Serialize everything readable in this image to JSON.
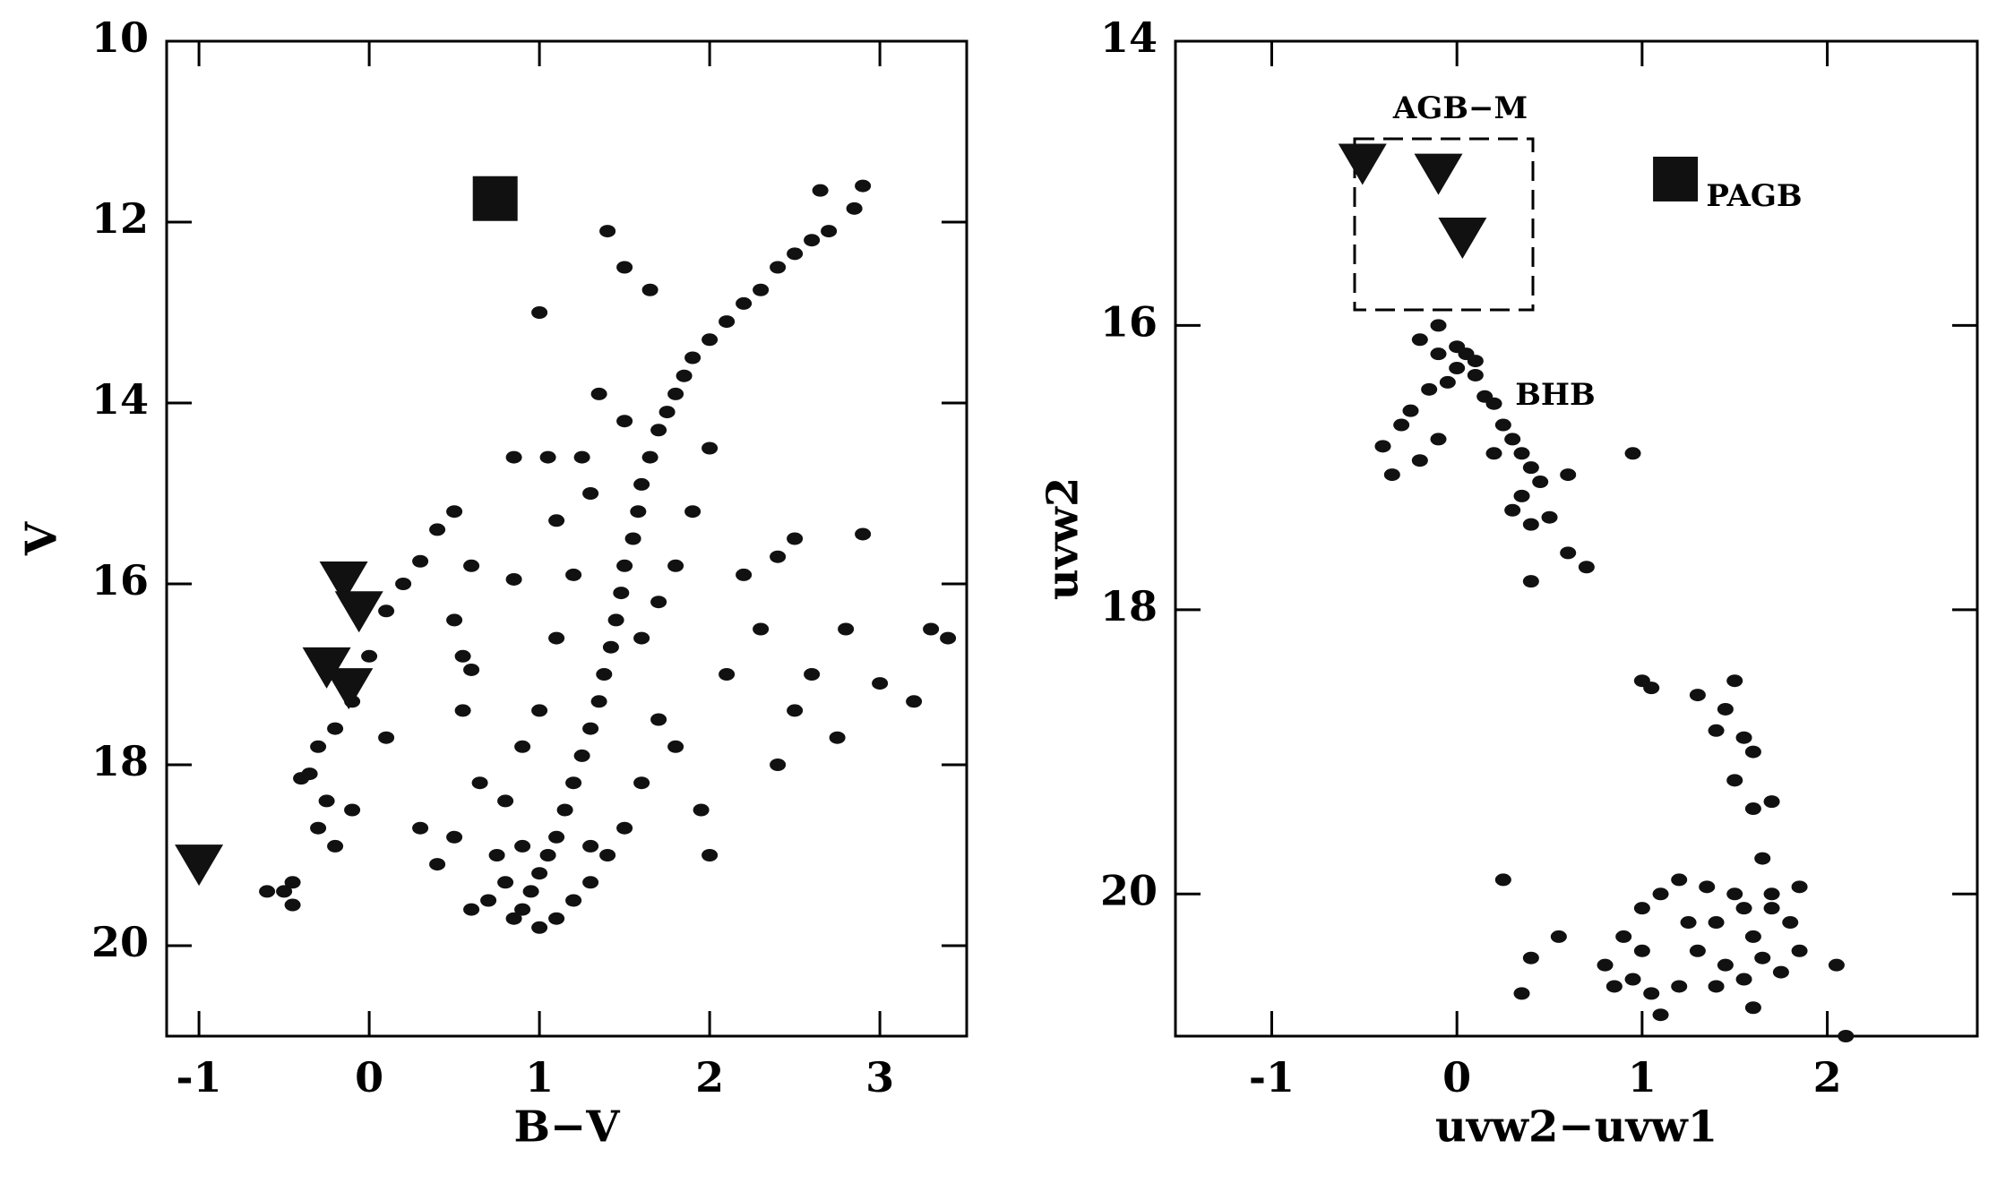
{
  "chart_data": [
    {
      "type": "scatter",
      "xlabel": "B−V",
      "ylabel": "V",
      "xlim": [
        -1.19,
        3.51
      ],
      "ylim": [
        10,
        21
      ],
      "y_inverted": true,
      "xticks": [
        -1,
        0,
        1,
        2,
        3
      ],
      "yticks": [
        10,
        12,
        14,
        16,
        18,
        20
      ],
      "series": [
        {
          "marker": "circle",
          "color": "#111111",
          "x": [
            2.9,
            2.85,
            2.65,
            2.7,
            2.6,
            2.5,
            2.4,
            2.3,
            2.2,
            2.1,
            2.0,
            1.9,
            1.85,
            1.8,
            1.75,
            1.7,
            1.65,
            1.6,
            1.58,
            1.55,
            1.5,
            1.48,
            1.45,
            1.42,
            1.38,
            1.35,
            1.3,
            1.25,
            1.2,
            1.15,
            1.1,
            1.05,
            1.0,
            0.95,
            0.9,
            0.85,
            1.2,
            1.3,
            1.4,
            1.5,
            0.8,
            0.7,
            0.6,
            1.1,
            1.0,
            0.75,
            0.9,
            1.3,
            1.6,
            1.7,
            1.8,
            1.6,
            1.7,
            1.8,
            1.9,
            2.0,
            1.5,
            1.35,
            1.3,
            1.2,
            1.1,
            1.0,
            0.9,
            0.8,
            0.5,
            0.3,
            0.4,
            0.65,
            0.55,
            1.95,
            2.0,
            2.1,
            2.3,
            2.2,
            2.4,
            2.5,
            2.8,
            2.9,
            3.0,
            3.2,
            3.3,
            3.4,
            2.5,
            2.6,
            2.75,
            2.4,
            1.4,
            1.5,
            1.65,
            1.0,
            1.25,
            0.85,
            1.05,
            1.1,
            0.6,
            0.85,
            0.5,
            0.4,
            0.3,
            0.2,
            0.1,
            0.0,
            -0.1,
            -0.2,
            -0.3,
            -0.35,
            -0.25,
            -0.3,
            -0.2,
            -0.1,
            0.1,
            -0.4,
            -0.45,
            -0.5,
            -0.6,
            -0.45,
            0.5,
            0.55,
            0.6
          ],
          "values": [
            11.6,
            11.85,
            11.65,
            12.1,
            12.2,
            12.35,
            12.5,
            12.75,
            12.9,
            13.1,
            13.3,
            13.5,
            13.7,
            13.9,
            14.1,
            14.3,
            14.6,
            14.9,
            15.2,
            15.5,
            15.8,
            16.1,
            16.4,
            16.7,
            17.0,
            17.3,
            17.6,
            17.9,
            18.2,
            18.5,
            18.8,
            19.0,
            19.2,
            19.4,
            19.6,
            19.7,
            19.5,
            19.3,
            19.0,
            18.7,
            19.3,
            19.5,
            19.6,
            19.7,
            19.8,
            19.0,
            18.9,
            18.9,
            18.2,
            17.5,
            17.8,
            16.6,
            16.2,
            15.8,
            15.2,
            14.5,
            14.2,
            13.9,
            15.0,
            15.9,
            16.6,
            17.4,
            17.8,
            18.4,
            18.8,
            18.7,
            19.1,
            18.2,
            17.4,
            18.5,
            19.0,
            17.0,
            16.5,
            15.9,
            15.7,
            15.5,
            16.5,
            15.45,
            17.1,
            17.3,
            16.5,
            16.6,
            17.4,
            17.0,
            17.7,
            18.0,
            12.1,
            12.5,
            12.75,
            13.0,
            14.6,
            14.6,
            14.6,
            15.3,
            15.8,
            15.95,
            15.2,
            15.4,
            15.75,
            16.0,
            16.3,
            16.8,
            17.3,
            17.6,
            17.8,
            18.1,
            18.4,
            18.7,
            18.9,
            18.5,
            17.7,
            18.15,
            19.3,
            19.4,
            19.4,
            19.55,
            16.4,
            16.8,
            16.95
          ]
        },
        {
          "marker": "triangle",
          "color": "#111111",
          "x": [
            -0.15,
            -0.06,
            -0.25,
            -0.12,
            -1.0
          ],
          "values": [
            15.97,
            16.3,
            16.92,
            17.15,
            19.1
          ]
        },
        {
          "marker": "square",
          "color": "#111111",
          "x": [
            0.74
          ],
          "values": [
            11.74
          ]
        }
      ]
    },
    {
      "type": "scatter",
      "xlabel": "uvw2−uvw1",
      "ylabel": "uvw2",
      "xlim": [
        -1.52,
        2.81
      ],
      "ylim": [
        14,
        21
      ],
      "y_inverted": true,
      "xticks": [
        -1,
        0,
        1,
        2
      ],
      "yticks": [
        14,
        16,
        18,
        20
      ],
      "annotations": [
        "AGB−M",
        "PAGB",
        "BHB"
      ],
      "series": [
        {
          "marker": "circle",
          "color": "#111111",
          "x": [
            -0.2,
            -0.1,
            0.0,
            -0.05,
            0.05,
            0.1,
            -0.15,
            0.15,
            0.2,
            -0.25,
            -0.3,
            0.25,
            0.3,
            0.35,
            0.4,
            0.45,
            0.35,
            0.3,
            0.5,
            0.6,
            -0.4,
            -0.35,
            -0.2,
            -0.1,
            0.2,
            0.4,
            0.4,
            0.6,
            0.7,
            0.95,
            -0.1,
            0.0,
            0.1,
            1.0,
            1.05,
            1.3,
            1.5,
            1.45,
            1.4,
            1.55,
            1.6,
            1.5,
            1.6,
            1.7,
            1.65,
            1.85,
            1.8,
            1.7,
            1.6,
            1.5,
            1.4,
            1.35,
            1.2,
            1.1,
            1.0,
            0.9,
            0.8,
            0.95,
            1.05,
            1.2,
            1.3,
            1.45,
            1.55,
            1.65,
            1.75,
            1.85,
            1.6,
            1.1,
            0.85,
            1.0,
            1.25,
            2.05,
            2.1,
            0.55,
            0.4,
            0.25,
            0.35,
            1.7,
            1.4,
            1.55
          ],
          "values": [
            16.1,
            16.2,
            16.3,
            16.4,
            16.2,
            16.35,
            16.45,
            16.5,
            16.55,
            16.6,
            16.7,
            16.7,
            16.8,
            16.9,
            17.0,
            17.1,
            17.2,
            17.3,
            17.35,
            17.05,
            16.85,
            17.05,
            16.95,
            16.8,
            16.9,
            17.4,
            17.8,
            17.6,
            17.7,
            16.9,
            16.0,
            16.15,
            16.25,
            18.5,
            18.55,
            18.6,
            18.5,
            18.7,
            18.85,
            18.9,
            19.0,
            19.2,
            19.4,
            19.35,
            19.75,
            19.95,
            20.2,
            20.1,
            20.3,
            20.0,
            20.2,
            19.95,
            19.9,
            20.0,
            20.1,
            20.3,
            20.5,
            20.6,
            20.7,
            20.65,
            20.4,
            20.5,
            20.6,
            20.45,
            20.55,
            20.4,
            20.8,
            20.85,
            20.65,
            20.4,
            20.2,
            20.5,
            21.0,
            20.3,
            20.45,
            19.9,
            20.7,
            20.0,
            20.65,
            20.1
          ]
        },
        {
          "marker": "triangle",
          "color": "#111111",
          "x": [
            -0.51,
            -0.1,
            0.03
          ],
          "values": [
            14.86,
            14.93,
            15.38
          ]
        },
        {
          "marker": "square",
          "color": "#111111",
          "x": [
            1.18
          ],
          "values": [
            14.97
          ]
        }
      ]
    }
  ]
}
